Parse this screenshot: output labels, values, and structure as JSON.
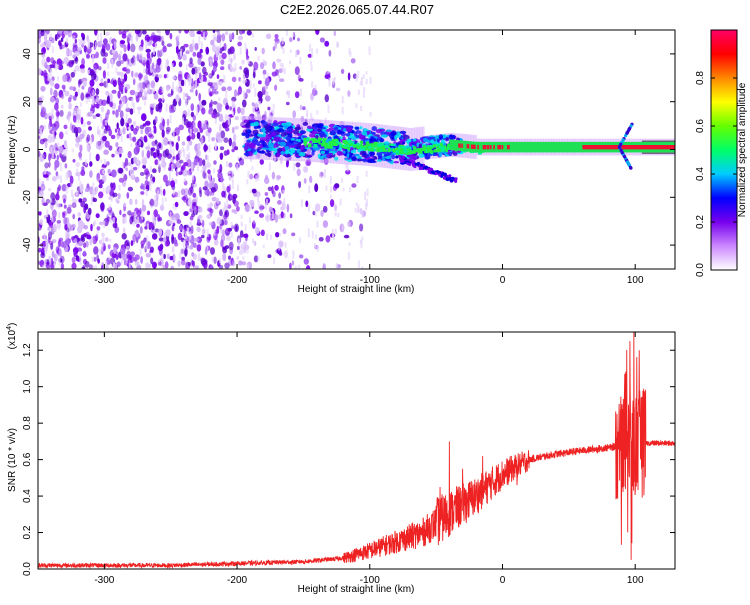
{
  "figure": {
    "title": "C2E2.2026.065.07.44.R07"
  },
  "colors": {
    "snr_line": "#ee2222",
    "spectrogram_noise": "#7700ee",
    "ridge_green": "#22ee44",
    "ridge_red": "#ee1133"
  },
  "chart_data": [
    {
      "type": "heatmap",
      "name": "spectrogram",
      "xlabel": "Height of straight line (km)",
      "ylabel": "Frequency (Hz)",
      "xlim": [
        -350,
        130
      ],
      "ylim": [
        -50,
        50
      ],
      "x_ticks": [
        -300,
        -200,
        -100,
        0,
        100
      ],
      "x_tick_labels": [
        "-300",
        "-200",
        "-100",
        "0",
        "100"
      ],
      "y_ticks": [
        -40,
        -20,
        0,
        20,
        40
      ],
      "y_tick_labels": [
        "-40",
        "-20",
        "0",
        "20",
        "40"
      ],
      "description_ridge": [
        {
          "x": -195,
          "f": 5
        },
        {
          "x": -150,
          "f": 4
        },
        {
          "x": -100,
          "f": 2
        },
        {
          "x": -70,
          "f": 0
        },
        {
          "x": -40,
          "f": 2
        },
        {
          "x": -20,
          "f": 1
        },
        {
          "x": 0,
          "f": 1
        },
        {
          "x": 50,
          "f": 1
        },
        {
          "x": 85,
          "f": 1
        },
        {
          "x": 100,
          "f": 1
        },
        {
          "x": 130,
          "f": 1
        }
      ],
      "noise_region": [
        -350,
        -120
      ],
      "colorbar": {
        "label": "Normalized spectral amplitude",
        "range": [
          0,
          1
        ],
        "ticks": [
          0.0,
          0.2,
          0.4,
          0.6,
          0.8
        ],
        "tick_labels": [
          "0.0",
          "0.2",
          "0.4",
          "0.6",
          "0.8"
        ],
        "stops": [
          "#ffffff",
          "#cc88ff",
          "#7700ee",
          "#0000ff",
          "#00ccff",
          "#00ff66",
          "#66ff00",
          "#ffff00",
          "#ff8800",
          "#ff0000",
          "#ff0066"
        ]
      }
    },
    {
      "type": "line",
      "name": "snr",
      "xlabel": "Height of straight line (km)",
      "ylabel": "SNR (10 * v/v)",
      "y_multiplier": "(x10",
      "y_multiplier_exp": "4",
      "y_multiplier_close": ")",
      "xlim": [
        -350,
        130
      ],
      "ylim": [
        0,
        1.3
      ],
      "x_ticks": [
        -300,
        -200,
        -100,
        0,
        100
      ],
      "x_tick_labels": [
        "-300",
        "-200",
        "-100",
        "0",
        "100"
      ],
      "y_ticks": [
        0.0,
        0.2,
        0.4,
        0.6,
        0.8,
        1.0,
        1.2
      ],
      "y_tick_labels": [
        "0.0",
        "0.2",
        "0.4",
        "0.6",
        "0.8",
        "1.0",
        "1.2"
      ],
      "envelope": [
        {
          "x": -350,
          "y": 0.02
        },
        {
          "x": -250,
          "y": 0.02
        },
        {
          "x": -200,
          "y": 0.03
        },
        {
          "x": -150,
          "y": 0.04
        },
        {
          "x": -120,
          "y": 0.06
        },
        {
          "x": -100,
          "y": 0.1
        },
        {
          "x": -80,
          "y": 0.15
        },
        {
          "x": -60,
          "y": 0.2
        },
        {
          "x": -45,
          "y": 0.28
        },
        {
          "x": -35,
          "y": 0.33
        },
        {
          "x": -20,
          "y": 0.4
        },
        {
          "x": 0,
          "y": 0.52
        },
        {
          "x": 10,
          "y": 0.56
        },
        {
          "x": 20,
          "y": 0.6
        },
        {
          "x": 40,
          "y": 0.63
        },
        {
          "x": 60,
          "y": 0.65
        },
        {
          "x": 85,
          "y": 0.67
        },
        {
          "x": 95,
          "y": 0.68
        },
        {
          "x": 105,
          "y": 0.69
        },
        {
          "x": 130,
          "y": 0.69
        }
      ],
      "spikes": [
        {
          "x": -40,
          "y": 0.7
        },
        {
          "x": -47,
          "y": 0.45
        },
        {
          "x": -30,
          "y": 0.55
        },
        {
          "x": -15,
          "y": 0.62
        },
        {
          "x": 11,
          "y": 0.46
        },
        {
          "x": 92,
          "y": 1.0
        },
        {
          "x": 96,
          "y": 1.25
        },
        {
          "x": 99,
          "y": 1.3
        },
        {
          "x": 103,
          "y": 1.2
        },
        {
          "x": 97,
          "y": 0.05
        }
      ]
    }
  ]
}
